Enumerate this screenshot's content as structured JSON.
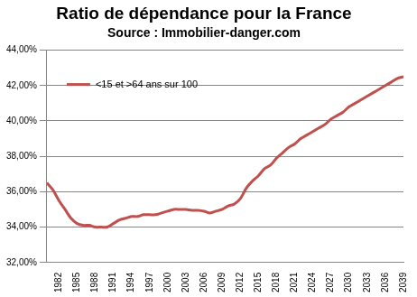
{
  "chart_data": {
    "type": "line",
    "title": "Ratio de dépendance pour la France",
    "subtitle": "Source : Immobilier-danger.com",
    "categories": [
      null,
      null,
      "1982",
      null,
      null,
      "1985",
      null,
      null,
      "1988",
      null,
      null,
      "1991",
      null,
      null,
      "1994",
      null,
      null,
      "1997",
      null,
      null,
      "2000",
      null,
      null,
      "2003",
      null,
      null,
      "2006",
      null,
      null,
      "2009",
      null,
      null,
      "2012",
      null,
      null,
      "2015",
      null,
      null,
      "2018",
      null,
      null,
      "2021",
      null,
      null,
      "2024",
      null,
      null,
      "2027",
      null,
      null,
      "2030",
      null,
      null,
      "2033",
      null,
      null,
      "2036",
      null,
      null,
      "2039"
    ],
    "series": [
      {
        "name": "<15 et >64 ans sur 100",
        "color": "#c0504d",
        "values": [
          36.5,
          36.1,
          35.5,
          35.0,
          34.5,
          34.2,
          34.1,
          34.1,
          34.0,
          34.0,
          34.0,
          34.2,
          34.4,
          34.5,
          34.6,
          34.6,
          34.7,
          34.7,
          34.7,
          34.8,
          34.9,
          35.0,
          35.0,
          35.0,
          34.95,
          34.95,
          34.9,
          34.8,
          34.9,
          35.0,
          35.2,
          35.3,
          35.6,
          36.2,
          36.6,
          36.9,
          37.3,
          37.5,
          37.9,
          38.2,
          38.5,
          38.7,
          39.0,
          39.2,
          39.4,
          39.6,
          39.8,
          40.1,
          40.3,
          40.5,
          40.8,
          41.0,
          41.2,
          41.4,
          41.6,
          41.8,
          42.0,
          42.2,
          42.4,
          42.5
        ]
      }
    ],
    "ylim": [
      32,
      44
    ],
    "yticks": [
      {
        "value": 32,
        "label": "32,00%"
      },
      {
        "value": 34,
        "label": "34,00%"
      },
      {
        "value": 36,
        "label": "36,00%"
      },
      {
        "value": 38,
        "label": "38,00%"
      },
      {
        "value": 40,
        "label": "40,00%"
      },
      {
        "value": 42,
        "label": "42,00%"
      },
      {
        "value": 44,
        "label": "44,00%"
      }
    ],
    "grid": true,
    "legend": "upper left"
  }
}
